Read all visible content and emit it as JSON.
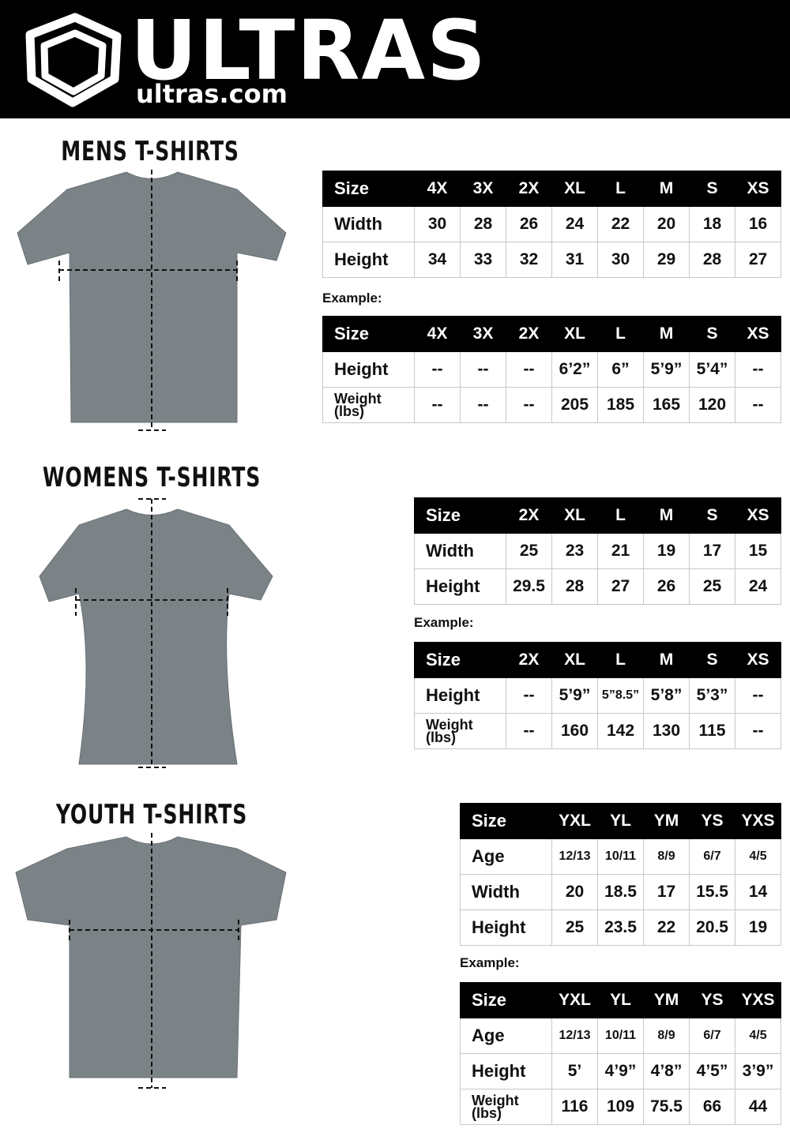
{
  "header": {
    "brand": "ULTRAS",
    "site": "ultras.com"
  },
  "sections": [
    {
      "title": "MENS T-SHIRTS",
      "size_table": {
        "header": [
          "Size",
          "4X",
          "3X",
          "2X",
          "XL",
          "L",
          "M",
          "S",
          "XS"
        ],
        "rows": [
          [
            "Width",
            "30",
            "28",
            "26",
            "24",
            "22",
            "20",
            "18",
            "16"
          ],
          [
            "Height",
            "34",
            "33",
            "32",
            "31",
            "30",
            "29",
            "28",
            "27"
          ]
        ]
      },
      "example_label": "Example:",
      "example_table": {
        "header": [
          "Size",
          "4X",
          "3X",
          "2X",
          "XL",
          "L",
          "M",
          "S",
          "XS"
        ],
        "rows": [
          [
            "Height",
            "--",
            "--",
            "--",
            "6’2”",
            "6”",
            "5’9”",
            "5’4”",
            "--"
          ],
          [
            "Weight (lbs)",
            "--",
            "--",
            "--",
            "205",
            "185",
            "165",
            "120",
            "--"
          ]
        ]
      }
    },
    {
      "title": "WOMENS T-SHIRTS",
      "size_table": {
        "header": [
          "Size",
          "2X",
          "XL",
          "L",
          "M",
          "S",
          "XS"
        ],
        "rows": [
          [
            "Width",
            "25",
            "23",
            "21",
            "19",
            "17",
            "15"
          ],
          [
            "Height",
            "29.5",
            "28",
            "27",
            "26",
            "25",
            "24"
          ]
        ]
      },
      "example_label": "Example:",
      "example_table": {
        "header": [
          "Size",
          "2X",
          "XL",
          "L",
          "M",
          "S",
          "XS"
        ],
        "rows": [
          [
            "Height",
            "--",
            "5’9”",
            "5”8.5”",
            "5’8”",
            "5’3”",
            "--"
          ],
          [
            "Weight (lbs)",
            "--",
            "160",
            "142",
            "130",
            "115",
            "--"
          ]
        ]
      }
    },
    {
      "title": "YOUTH T-SHIRTS",
      "size_table": {
        "header": [
          "Size",
          "YXL",
          "YL",
          "YM",
          "YS",
          "YXS"
        ],
        "rows": [
          [
            "Age",
            "12/13",
            "10/11",
            "8/9",
            "6/7",
            "4/5"
          ],
          [
            "Width",
            "20",
            "18.5",
            "17",
            "15.5",
            "14"
          ],
          [
            "Height",
            "25",
            "23.5",
            "22",
            "20.5",
            "19"
          ]
        ]
      },
      "example_label": "Example:",
      "example_table": {
        "header": [
          "Size",
          "YXL",
          "YL",
          "YM",
          "YS",
          "YXS"
        ],
        "rows": [
          [
            "Age",
            "12/13",
            "10/11",
            "8/9",
            "6/7",
            "4/5"
          ],
          [
            "Height",
            "5’",
            "4’9”",
            "4’8”",
            "4’5”",
            "3’9”"
          ],
          [
            "Weight (lbs)",
            "116",
            "109",
            "75.5",
            "66",
            "44"
          ]
        ]
      }
    }
  ]
}
